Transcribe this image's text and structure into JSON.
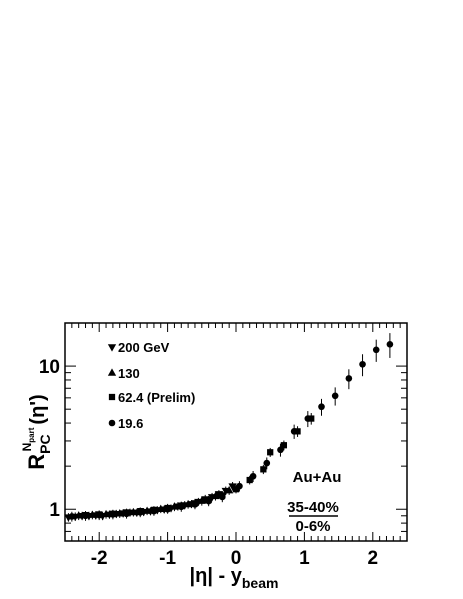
{
  "chart_data": {
    "type": "scatter",
    "title": "",
    "xlabel": {
      "main": "|η| - y",
      "sub": "beam"
    },
    "ylabel": {
      "main": "R",
      "sub": "PC",
      "sup": "N",
      "supsub": "part",
      "arg": "(η')"
    },
    "xlim": [
      -2.5,
      2.5
    ],
    "ylim": [
      0.6,
      20
    ],
    "yscale": "log",
    "grid": false,
    "x_ticks": [
      -2,
      -1,
      0,
      1,
      2
    ],
    "x_tick_labels": [
      "-2",
      "-1",
      "0",
      "1",
      "2"
    ],
    "y_ticks": [
      1,
      10
    ],
    "y_tick_labels": [
      "1",
      "10"
    ],
    "legend_position": "top-left",
    "annotations": {
      "system": "Au+Au",
      "numerator": "35-40%",
      "denominator": "0-6%"
    },
    "series": [
      {
        "name": "200 GeV",
        "marker": "triangle-down",
        "x": [
          -2.45,
          -2.35,
          -2.25,
          -2.15,
          -2.05,
          -1.95,
          -1.85,
          -1.75,
          -1.65,
          -1.55,
          -1.45,
          -1.35,
          -1.25,
          -1.15,
          -1.05,
          -0.95,
          -0.85,
          -0.75,
          -0.65,
          -0.55,
          -0.45,
          -0.35,
          -0.25,
          -0.15,
          -0.05
        ],
        "y": [
          0.88,
          0.89,
          0.9,
          0.9,
          0.91,
          0.9,
          0.92,
          0.93,
          0.94,
          0.95,
          0.95,
          0.96,
          0.97,
          0.99,
          1.0,
          1.02,
          1.05,
          1.07,
          1.09,
          1.13,
          1.18,
          1.22,
          1.28,
          1.35,
          1.45
        ],
        "err": [
          0.06,
          0.06,
          0.06,
          0.06,
          0.06,
          0.06,
          0.06,
          0.06,
          0.06,
          0.06,
          0.06,
          0.06,
          0.06,
          0.06,
          0.06,
          0.06,
          0.07,
          0.07,
          0.07,
          0.07,
          0.08,
          0.08,
          0.08,
          0.09,
          0.1
        ]
      },
      {
        "name": "130",
        "marker": "triangle-up",
        "x": [
          -2.3,
          -2.1,
          -1.9,
          -1.7,
          -1.5,
          -1.3,
          -1.1,
          -0.9,
          -0.7,
          -0.5,
          -0.3,
          -0.1
        ],
        "y": [
          0.9,
          0.91,
          0.92,
          0.93,
          0.95,
          0.97,
          1.0,
          1.04,
          1.08,
          1.14,
          1.23,
          1.35
        ],
        "err": [
          0.06,
          0.06,
          0.06,
          0.06,
          0.06,
          0.06,
          0.06,
          0.07,
          0.07,
          0.08,
          0.08,
          0.09
        ]
      },
      {
        "name": "62.4 (Prelim)",
        "marker": "square",
        "x": [
          -2.2,
          -2.0,
          -1.8,
          -1.6,
          -1.4,
          -1.2,
          -1.0,
          -0.8,
          -0.6,
          -0.4,
          -0.2,
          0.0,
          0.2,
          0.4,
          0.5,
          0.7,
          0.9,
          1.1
        ],
        "y": [
          0.91,
          0.92,
          0.93,
          0.95,
          0.97,
          0.99,
          1.02,
          1.06,
          1.1,
          1.16,
          1.25,
          1.38,
          1.6,
          1.9,
          2.5,
          2.8,
          3.5,
          4.3
        ],
        "err": [
          0.06,
          0.06,
          0.06,
          0.06,
          0.06,
          0.06,
          0.07,
          0.07,
          0.07,
          0.08,
          0.08,
          0.09,
          0.11,
          0.14,
          0.18,
          0.22,
          0.3,
          0.4
        ]
      },
      {
        "name": "19.6",
        "marker": "circle",
        "x": [
          -2.4,
          -2.2,
          -2.0,
          -1.8,
          -1.6,
          -1.4,
          -1.2,
          -1.0,
          -0.8,
          -0.6,
          -0.4,
          -0.2,
          0.05,
          0.25,
          0.45,
          0.65,
          0.85,
          1.05,
          1.25,
          1.45,
          1.65,
          1.85,
          2.05,
          2.25
        ],
        "y": [
          0.89,
          0.9,
          0.91,
          0.92,
          0.93,
          0.95,
          0.97,
          1.0,
          1.04,
          1.08,
          1.14,
          1.22,
          1.45,
          1.7,
          2.1,
          2.6,
          3.5,
          4.3,
          5.2,
          6.2,
          8.2,
          10.3,
          13.0,
          14.2
        ],
        "err": [
          0.07,
          0.07,
          0.07,
          0.07,
          0.07,
          0.07,
          0.07,
          0.07,
          0.08,
          0.08,
          0.09,
          0.1,
          0.12,
          0.15,
          0.2,
          0.27,
          0.4,
          0.55,
          0.7,
          0.9,
          1.3,
          1.8,
          2.3,
          2.8
        ]
      }
    ]
  }
}
